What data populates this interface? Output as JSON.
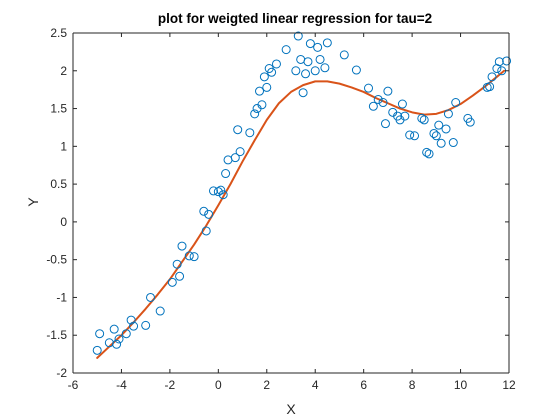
{
  "chart_data": {
    "type": "scatter",
    "title": "plot for weigted linear regression for tau=2",
    "xlabel": "X",
    "ylabel": "Y",
    "xlim": [
      -6,
      12
    ],
    "ylim": [
      -2,
      2.5
    ],
    "xticks": [
      -6,
      -4,
      -2,
      0,
      2,
      4,
      6,
      8,
      10,
      12
    ],
    "yticks": [
      -2,
      -1.5,
      -1,
      -0.5,
      0,
      0.5,
      1,
      1.5,
      2,
      2.5
    ],
    "grid": false,
    "legend": "none",
    "colors": {
      "points": "#0072BD",
      "line": "#D95319",
      "axes": "#262626"
    },
    "series": [
      {
        "kind": "scatter",
        "marker": "circle",
        "x": [
          -5.0,
          -4.9,
          -4.5,
          -4.3,
          -4.1,
          -4.2,
          -3.8,
          -3.6,
          -3.5,
          -3.0,
          -2.8,
          -2.4,
          -1.9,
          -1.7,
          -1.6,
          -1.5,
          -1.2,
          -1.0,
          -0.6,
          -0.5,
          -0.4,
          -0.2,
          0.0,
          0.1,
          0.2,
          0.3,
          0.4,
          0.7,
          0.8,
          0.9,
          1.3,
          1.5,
          1.6,
          1.7,
          1.8,
          1.9,
          2.0,
          2.1,
          2.2,
          2.4,
          2.8,
          3.2,
          3.3,
          3.4,
          3.5,
          3.6,
          3.7,
          3.8,
          4.0,
          4.1,
          4.2,
          4.4,
          4.5,
          5.2,
          5.7,
          6.2,
          6.4,
          6.6,
          6.8,
          6.9,
          7.0,
          7.2,
          7.4,
          7.5,
          7.6,
          7.7,
          7.9,
          8.1,
          8.4,
          8.5,
          8.6,
          8.7,
          8.9,
          9.0,
          9.1,
          9.2,
          9.4,
          9.5,
          9.7,
          9.8,
          10.3,
          10.4,
          11.1,
          11.2,
          11.3,
          11.5,
          11.6,
          11.7,
          11.9
        ],
        "y": [
          -1.7,
          -1.48,
          -1.6,
          -1.42,
          -1.55,
          -1.62,
          -1.48,
          -1.3,
          -1.38,
          -1.37,
          -1.0,
          -1.18,
          -0.8,
          -0.56,
          -0.72,
          -0.32,
          -0.45,
          -0.46,
          0.14,
          -0.12,
          0.1,
          0.41,
          0.4,
          0.42,
          0.36,
          0.64,
          0.82,
          0.85,
          1.22,
          0.93,
          1.18,
          1.43,
          1.5,
          1.73,
          1.55,
          1.92,
          1.78,
          2.03,
          1.98,
          2.09,
          2.28,
          2.0,
          2.46,
          2.15,
          1.71,
          1.96,
          2.12,
          2.36,
          2.0,
          2.31,
          2.15,
          2.04,
          2.37,
          2.21,
          2.01,
          1.77,
          1.53,
          1.62,
          1.58,
          1.3,
          1.73,
          1.45,
          1.4,
          1.35,
          1.56,
          1.4,
          1.15,
          1.14,
          1.37,
          1.35,
          0.92,
          0.9,
          1.17,
          1.14,
          1.28,
          1.04,
          1.23,
          1.43,
          1.05,
          1.58,
          1.37,
          1.32,
          1.78,
          1.79,
          1.92,
          2.03,
          2.12,
          2.0,
          2.13
        ]
      },
      {
        "kind": "line",
        "x": [
          -5.0,
          -4.5,
          -4.0,
          -3.5,
          -3.0,
          -2.5,
          -2.0,
          -1.5,
          -1.0,
          -0.5,
          0.0,
          0.5,
          1.0,
          1.5,
          2.0,
          2.5,
          3.0,
          3.5,
          4.0,
          4.5,
          5.0,
          5.5,
          6.0,
          6.5,
          7.0,
          7.5,
          8.0,
          8.5,
          9.0,
          9.5,
          10.0,
          10.5,
          11.0,
          11.5,
          11.8
        ],
        "y": [
          -1.8,
          -1.65,
          -1.5,
          -1.33,
          -1.15,
          -0.96,
          -0.76,
          -0.53,
          -0.3,
          -0.05,
          0.22,
          0.5,
          0.8,
          1.08,
          1.35,
          1.57,
          1.72,
          1.81,
          1.86,
          1.86,
          1.83,
          1.78,
          1.72,
          1.64,
          1.57,
          1.5,
          1.45,
          1.42,
          1.43,
          1.48,
          1.56,
          1.67,
          1.79,
          1.92,
          2.0
        ]
      }
    ]
  }
}
